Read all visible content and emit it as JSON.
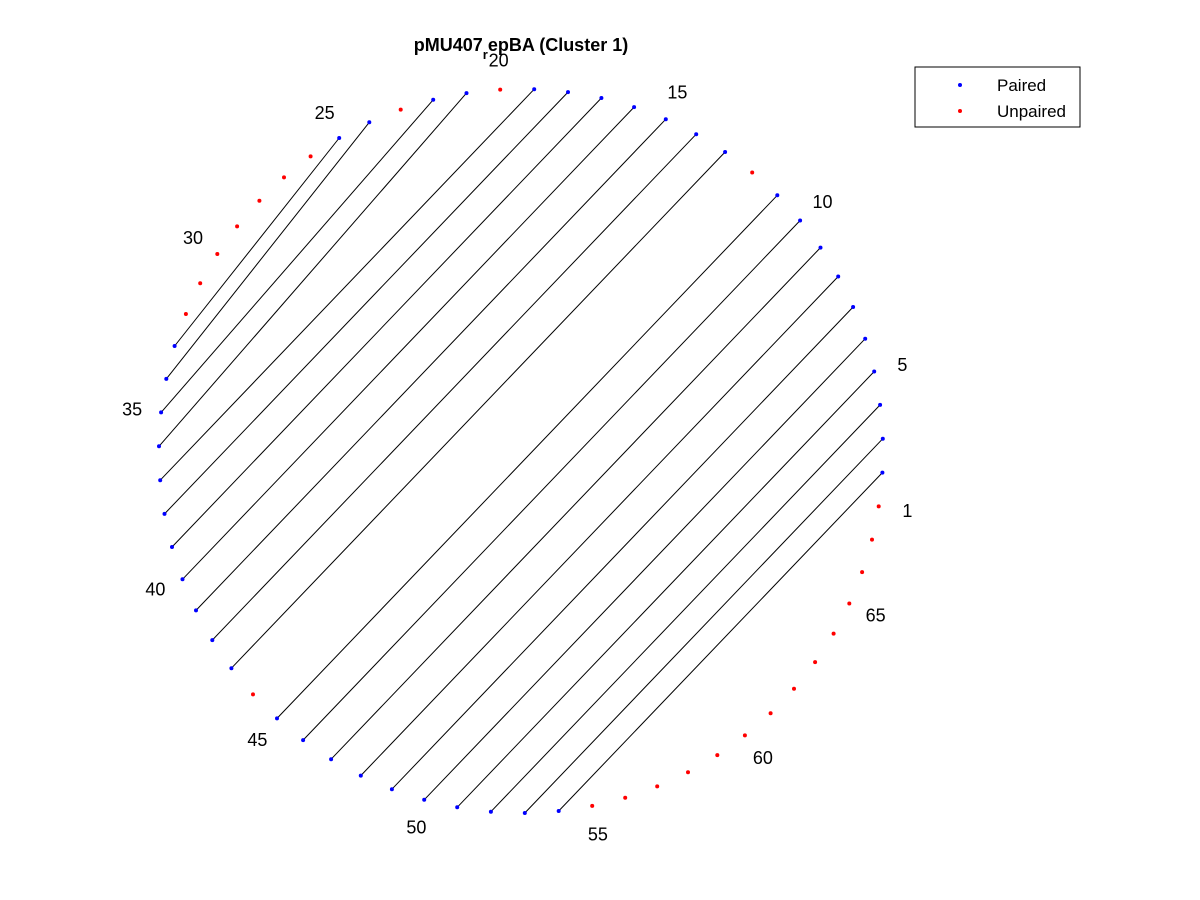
{
  "chart_data": {
    "type": "arc-diagram-circular",
    "title": {
      "prefix": "pMU407",
      "subscript": "r",
      "suffix": "epBA (Cluster 1)"
    },
    "n_positions": 67,
    "position_labels": [
      1,
      5,
      10,
      15,
      20,
      25,
      30,
      35,
      40,
      45,
      50,
      55,
      60,
      65
    ],
    "pairs": [
      [
        2,
        54
      ],
      [
        3,
        53
      ],
      [
        4,
        52
      ],
      [
        5,
        51
      ],
      [
        6,
        50
      ],
      [
        7,
        49
      ],
      [
        8,
        48
      ],
      [
        9,
        47
      ],
      [
        10,
        46
      ],
      [
        11,
        45
      ],
      [
        13,
        43
      ],
      [
        14,
        42
      ],
      [
        15,
        41
      ],
      [
        16,
        40
      ],
      [
        17,
        39
      ],
      [
        18,
        38
      ],
      [
        19,
        37
      ],
      [
        21,
        36
      ],
      [
        22,
        35
      ],
      [
        24,
        34
      ],
      [
        25,
        33
      ]
    ],
    "unpaired_positions": [
      1,
      12,
      20,
      23,
      26,
      27,
      28,
      29,
      30,
      31,
      32,
      44,
      55,
      56,
      57,
      58,
      59,
      60,
      61,
      62,
      63,
      64,
      65,
      66,
      67
    ],
    "legend": [
      {
        "label": "Paired",
        "color": "#0000ff"
      },
      {
        "label": "Unpaired",
        "color": "#ff0000"
      }
    ],
    "legend_location": "top-right",
    "colors": {
      "paired": "#0000ff",
      "unpaired": "#ff0000",
      "link": "#000000"
    }
  }
}
